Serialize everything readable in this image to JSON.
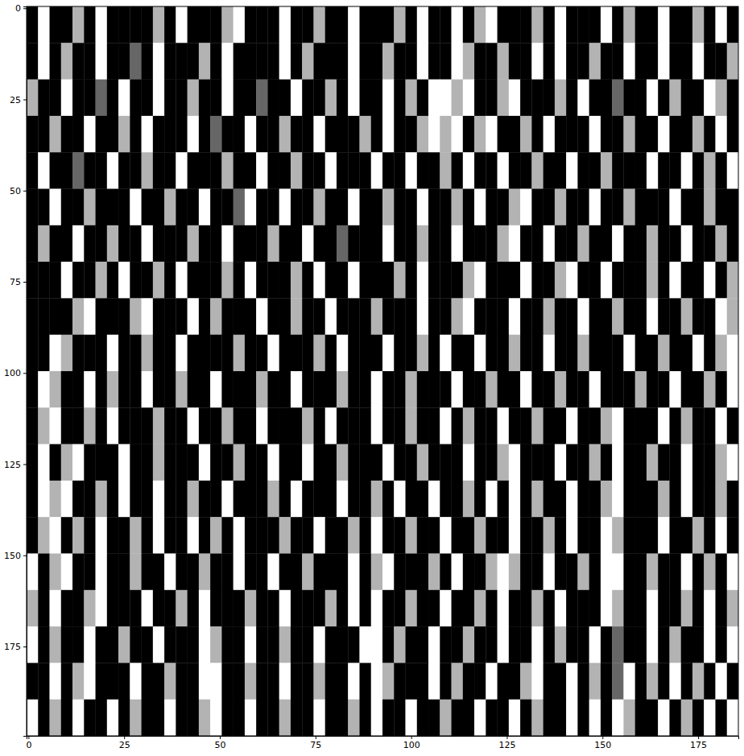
{
  "chart_data": {
    "type": "heatmap",
    "xlim": [
      -0.5,
      185.5
    ],
    "ylim": [
      199.5,
      -0.5
    ],
    "xticks": [
      0,
      25,
      50,
      75,
      100,
      125,
      150,
      175
    ],
    "yticks": [
      0,
      25,
      50,
      75,
      100,
      125,
      150,
      175
    ],
    "cells": [
      [
        0,
        1,
        0,
        0,
        0.7,
        0,
        1,
        0,
        0,
        0,
        0,
        0.7,
        0,
        1,
        0,
        0,
        0,
        0.7,
        1,
        0,
        0,
        0,
        1,
        0,
        0,
        0.7,
        0,
        0,
        1,
        0,
        0,
        0,
        0.7,
        0,
        1,
        0,
        0,
        1,
        0,
        0.7,
        1,
        0,
        0,
        0,
        0.7,
        0,
        1,
        0,
        0,
        0,
        1,
        0,
        0.7,
        0,
        0,
        1,
        0,
        0,
        0.7,
        0,
        1,
        0
      ],
      [
        0,
        1,
        0,
        0.7,
        0,
        0,
        1,
        0,
        0,
        0.4,
        0,
        1,
        0,
        0,
        0,
        0.7,
        0,
        1,
        0,
        0,
        0,
        0,
        1,
        0,
        0.7,
        0,
        0,
        0,
        1,
        0,
        0,
        0.7,
        0,
        0,
        1,
        0,
        0,
        1,
        0.7,
        0,
        0,
        0.7,
        0,
        0,
        1,
        0,
        1,
        0,
        0,
        0.7,
        0,
        0,
        1,
        0,
        0,
        1,
        0,
        0,
        1,
        0,
        0,
        0.7
      ],
      [
        0.7,
        0,
        0,
        1,
        0,
        0,
        0.4,
        0,
        1,
        0,
        0,
        1,
        0,
        0,
        0.7,
        0,
        0,
        1,
        0,
        0,
        0.4,
        0,
        0,
        1,
        0,
        0,
        0.7,
        0,
        1,
        0,
        0,
        1,
        0,
        0.7,
        0,
        1,
        1,
        0.7,
        1,
        0,
        0,
        0.7,
        1,
        0,
        0,
        0,
        0.7,
        0,
        1,
        0,
        0,
        0.4,
        0,
        0,
        1,
        0,
        0.7,
        0,
        0,
        1,
        0.7,
        0
      ],
      [
        0,
        0,
        0.7,
        0,
        0,
        1,
        0,
        0,
        0.7,
        0,
        1,
        0,
        0,
        0,
        1,
        0,
        0.4,
        0,
        0,
        1,
        0,
        0,
        0.7,
        0,
        0,
        1,
        0,
        0,
        0,
        0.7,
        0,
        1,
        0,
        0,
        0.7,
        1,
        0.7,
        1,
        0,
        0.7,
        1,
        0,
        0,
        0.7,
        0,
        1,
        0,
        0,
        0,
        1,
        0,
        0,
        0.7,
        0,
        0,
        1,
        0,
        0,
        0.7,
        0,
        1,
        0
      ],
      [
        0,
        1,
        0,
        0,
        0.4,
        0,
        0,
        1,
        0,
        0,
        0.7,
        0,
        0,
        1,
        0,
        0,
        0,
        0.7,
        0,
        0,
        1,
        0,
        0,
        0.7,
        0,
        0,
        1,
        0,
        0,
        0,
        1,
        0,
        0,
        1,
        0,
        0,
        0.7,
        0,
        1,
        0,
        0,
        1,
        0,
        0,
        0.7,
        0,
        0,
        1,
        0,
        0,
        0.7,
        0,
        0,
        0,
        1,
        0,
        0,
        1,
        0,
        0.7,
        0,
        1
      ],
      [
        0,
        0,
        1,
        0,
        0,
        0.7,
        0,
        0,
        0,
        1,
        0,
        0,
        0.7,
        0,
        0,
        1,
        0,
        0,
        0.4,
        1,
        0,
        0,
        1,
        0,
        0,
        0.7,
        0,
        0,
        1,
        0,
        0,
        0.7,
        0,
        0,
        1,
        0,
        0,
        0.7,
        0,
        1,
        0,
        0,
        0.7,
        1,
        0,
        0,
        0.7,
        0,
        0,
        1,
        0,
        0,
        0.7,
        0,
        0,
        0,
        1,
        0,
        0,
        0.7,
        0,
        0
      ],
      [
        0,
        0.7,
        0,
        0,
        1,
        0,
        0,
        0.7,
        0,
        0,
        1,
        0,
        0,
        0,
        0.7,
        0,
        0,
        1,
        0,
        0,
        0,
        0.7,
        0,
        0,
        1,
        0,
        0,
        0.4,
        0,
        0,
        0,
        1,
        0,
        0,
        0.7,
        0,
        0,
        1,
        0,
        0,
        0,
        0.7,
        1,
        0,
        0,
        1,
        0,
        0,
        0.7,
        0,
        0,
        1,
        0,
        0,
        0.7,
        0,
        0,
        1,
        0,
        0,
        0.7,
        0
      ],
      [
        0,
        0,
        0,
        1,
        0,
        0,
        0.7,
        0,
        1,
        0,
        0,
        0.7,
        0,
        1,
        0,
        0,
        0,
        0.7,
        0,
        1,
        0,
        0,
        0,
        0.7,
        0,
        1,
        0,
        0,
        1,
        0,
        0,
        0,
        0.7,
        0,
        1,
        0,
        0,
        0,
        0.7,
        1,
        0,
        0,
        0,
        1,
        0,
        0,
        0.7,
        1,
        0,
        0,
        1,
        0,
        0,
        0,
        0.7,
        0,
        1,
        0,
        0,
        1,
        0,
        0.7
      ],
      [
        0,
        0,
        0,
        0,
        0.7,
        1,
        0,
        0,
        0,
        0.7,
        1,
        0,
        0,
        0,
        1,
        0,
        0.7,
        0,
        0,
        0,
        1,
        0,
        0,
        0.7,
        0,
        0,
        1,
        0,
        0,
        0,
        0.7,
        0,
        0,
        0,
        1,
        0,
        0,
        0.7,
        1,
        0,
        0,
        0,
        1,
        0,
        0,
        0.7,
        0,
        0,
        1,
        0,
        0,
        0.7,
        0,
        0,
        1,
        0,
        0,
        0.7,
        0,
        0,
        1,
        0.7
      ],
      [
        0,
        0,
        1,
        0.7,
        0,
        0,
        0,
        1,
        0,
        0,
        0.7,
        0,
        0,
        1,
        0,
        0,
        0,
        0,
        0.7,
        0,
        0,
        1,
        0,
        0,
        0,
        0.7,
        0,
        1,
        0,
        0,
        0,
        1,
        0,
        0,
        0.7,
        0,
        1,
        0,
        0,
        1,
        0,
        0,
        0.7,
        0,
        0,
        1,
        0,
        0,
        0.7,
        0,
        0,
        0,
        1,
        0,
        0,
        0.7,
        0,
        0,
        1,
        0,
        0.7,
        1
      ],
      [
        0,
        1,
        0.7,
        0,
        0,
        1,
        0,
        0.7,
        0,
        0,
        1,
        0,
        0,
        0.7,
        0,
        0,
        1,
        0,
        0,
        0,
        0.7,
        0,
        0,
        1,
        0,
        0,
        0,
        0.7,
        0,
        0,
        1,
        0,
        0,
        0.7,
        0,
        0,
        0,
        1,
        0,
        0,
        0.7,
        0,
        0,
        1,
        0,
        0,
        0.7,
        0,
        0,
        1,
        0,
        0,
        0,
        0.7,
        0,
        0,
        1,
        0,
        0,
        0.7,
        0,
        1
      ],
      [
        0,
        0.7,
        1,
        0,
        0,
        0.7,
        0,
        1,
        0,
        0,
        0,
        0.7,
        0,
        0,
        1,
        0,
        0,
        0.7,
        0,
        0,
        1,
        0,
        0,
        0,
        0.7,
        0,
        1,
        0,
        0,
        0,
        1,
        0,
        0,
        0.7,
        0,
        0,
        1,
        0,
        0.7,
        0,
        0,
        1,
        0,
        0,
        0.7,
        0,
        0,
        1,
        0,
        0,
        0.7,
        1,
        0,
        0,
        0,
        1,
        0,
        0.7,
        0,
        0,
        1,
        0
      ],
      [
        0,
        1,
        0,
        0.7,
        1,
        0,
        0,
        0,
        1,
        0,
        0,
        0.7,
        0,
        0,
        0,
        1,
        0,
        0,
        0.7,
        0,
        0,
        1,
        0,
        0,
        1,
        0,
        0,
        0.7,
        0,
        0,
        0,
        1,
        0,
        0,
        0.7,
        0,
        0,
        0,
        1,
        0,
        0,
        0.7,
        1,
        0,
        0,
        0,
        1,
        0,
        0,
        0.7,
        0,
        1,
        0,
        0,
        0.7,
        0,
        0,
        1,
        0,
        0,
        0.7,
        1
      ],
      [
        0,
        1,
        0.7,
        1,
        0,
        0,
        0.7,
        0,
        1,
        0,
        0,
        1,
        0,
        0,
        0.7,
        0,
        0,
        1,
        0,
        0,
        0,
        0.7,
        0,
        1,
        0,
        0,
        0,
        1,
        0,
        0,
        0.7,
        0,
        1,
        0,
        0,
        1,
        0,
        0,
        0.7,
        0,
        1,
        0,
        1,
        0,
        0.7,
        0,
        0,
        1,
        0,
        0,
        0.7,
        1,
        0,
        0,
        0,
        0.7,
        0,
        1,
        0,
        0,
        0.7,
        0
      ],
      [
        0,
        0.7,
        1,
        0,
        0.7,
        0,
        1,
        0,
        0,
        0.7,
        0,
        1,
        0,
        0,
        1,
        0,
        0.7,
        0,
        1,
        0,
        0,
        0,
        0.7,
        0,
        0,
        1,
        0,
        0,
        0.7,
        0,
        1,
        0,
        0,
        0.7,
        0,
        0,
        1,
        0,
        0,
        0.7,
        0,
        0,
        1,
        0,
        0,
        0.7,
        0,
        1,
        0,
        0,
        1,
        0.7,
        0,
        0,
        0,
        1,
        0,
        0,
        0.7,
        0,
        1,
        0
      ],
      [
        1,
        0,
        0.7,
        1,
        0,
        0,
        1,
        0,
        0,
        0.7,
        0,
        0,
        1,
        0,
        0,
        0.7,
        0,
        0,
        1,
        0,
        0,
        1,
        0,
        0,
        0.7,
        0,
        0,
        0,
        1,
        0,
        0.7,
        1,
        0,
        0,
        0,
        0.7,
        0,
        1,
        0,
        0,
        0.7,
        1,
        0.7,
        0,
        0,
        1,
        0,
        0,
        0.7,
        0,
        1,
        1,
        0,
        0,
        0.7,
        0,
        0,
        1,
        0,
        0.7,
        0,
        1
      ],
      [
        0.7,
        0,
        1,
        0,
        0,
        0.7,
        1,
        0,
        0,
        0,
        1,
        0,
        0,
        0.7,
        0,
        1,
        0,
        0,
        0,
        0.7,
        0,
        0,
        1,
        0,
        0,
        0,
        0.7,
        0,
        1,
        0,
        1,
        0,
        0,
        0.7,
        0,
        0,
        1,
        0,
        0,
        0.7,
        0,
        1,
        0,
        0,
        0.7,
        0,
        1,
        0,
        0,
        0,
        1,
        0.7,
        0,
        0,
        1,
        0,
        0,
        0.7,
        0,
        1,
        0,
        0.7
      ],
      [
        1,
        0,
        0.7,
        0,
        0,
        1,
        0,
        0,
        0.7,
        0,
        0,
        1,
        0,
        0,
        0,
        1,
        0.7,
        0,
        0,
        1,
        0,
        0,
        0.7,
        0,
        0,
        1,
        0,
        0,
        0,
        1,
        1,
        0,
        0.7,
        0,
        0,
        1,
        0,
        0,
        0.7,
        0,
        0,
        1,
        0,
        0,
        1,
        0,
        0.7,
        0,
        0,
        1,
        0,
        0.4,
        0,
        0,
        1,
        0,
        0.7,
        0,
        0,
        1,
        0,
        1
      ],
      [
        0,
        0,
        1,
        0,
        0.7,
        1,
        0,
        0,
        0,
        1,
        0,
        0,
        0.7,
        0,
        0,
        1,
        1,
        0,
        0,
        0.7,
        0,
        0,
        1,
        0,
        0,
        0.7,
        0,
        0,
        1,
        0,
        1,
        0.7,
        0,
        0,
        0,
        1,
        0,
        0.7,
        0,
        0,
        1,
        0,
        0,
        0.7,
        1,
        0,
        0,
        1,
        0,
        0.7,
        0,
        0.4,
        1,
        0,
        0.7,
        0,
        1,
        0,
        0.7,
        0,
        1,
        0
      ],
      [
        1,
        0,
        0.7,
        0,
        1,
        0,
        0,
        1,
        0,
        0.7,
        0,
        0,
        1,
        0,
        0,
        0.7,
        1,
        0,
        0,
        1,
        0,
        0,
        0.7,
        0,
        0,
        1,
        0,
        0,
        0.7,
        0,
        1,
        0,
        0,
        1,
        0,
        0,
        0.7,
        0,
        0,
        1,
        0,
        0,
        1,
        0,
        0.7,
        0,
        0,
        1,
        0,
        1,
        0,
        1,
        0.7,
        0,
        0,
        1,
        0,
        0.7,
        0,
        1,
        0,
        1
      ]
    ]
  }
}
